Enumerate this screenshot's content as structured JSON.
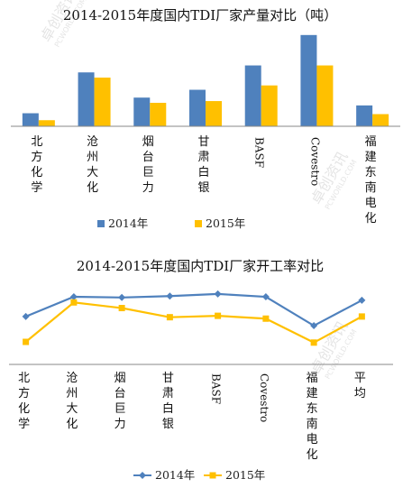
{
  "chart_data": [
    {
      "type": "bar",
      "title": "2014-2015年度国内TDI厂家产量对比（吨）",
      "categories": [
        "北方化学",
        "沧州大化",
        "烟台巨力",
        "甘肃白银",
        "BASF",
        "Covestro",
        "福建东南电化"
      ],
      "series": [
        {
          "name": "2014年",
          "color": "#4f81bd",
          "values": [
            15,
            62,
            33,
            42,
            70,
            105,
            24
          ]
        },
        {
          "name": "2015年",
          "color": "#ffc000",
          "values": [
            7,
            56,
            27,
            29,
            47,
            70,
            14
          ]
        }
      ],
      "ylim": [
        0,
        110
      ],
      "legend_position": "bottom",
      "grid": false
    },
    {
      "type": "line",
      "title": "2014-2015年度国内TDI厂家开工率对比",
      "categories": [
        "北方化学",
        "沧州大化",
        "烟台巨力",
        "甘肃白银",
        "BASF",
        "Covestro",
        "福建东南电化",
        "平均"
      ],
      "series": [
        {
          "name": "2014年",
          "color": "#4f81bd",
          "marker": "diamond",
          "values": [
            68,
            96,
            95,
            97,
            100,
            96,
            55,
            91
          ]
        },
        {
          "name": "2015年",
          "color": "#ffc000",
          "marker": "square",
          "values": [
            32,
            88,
            80,
            67,
            69,
            65,
            31,
            68
          ]
        }
      ],
      "ylim": [
        0,
        105
      ],
      "legend_position": "bottom",
      "grid": false
    }
  ],
  "watermark": {
    "cn": "卓创资讯",
    "en": "PCWORLD.COM"
  }
}
